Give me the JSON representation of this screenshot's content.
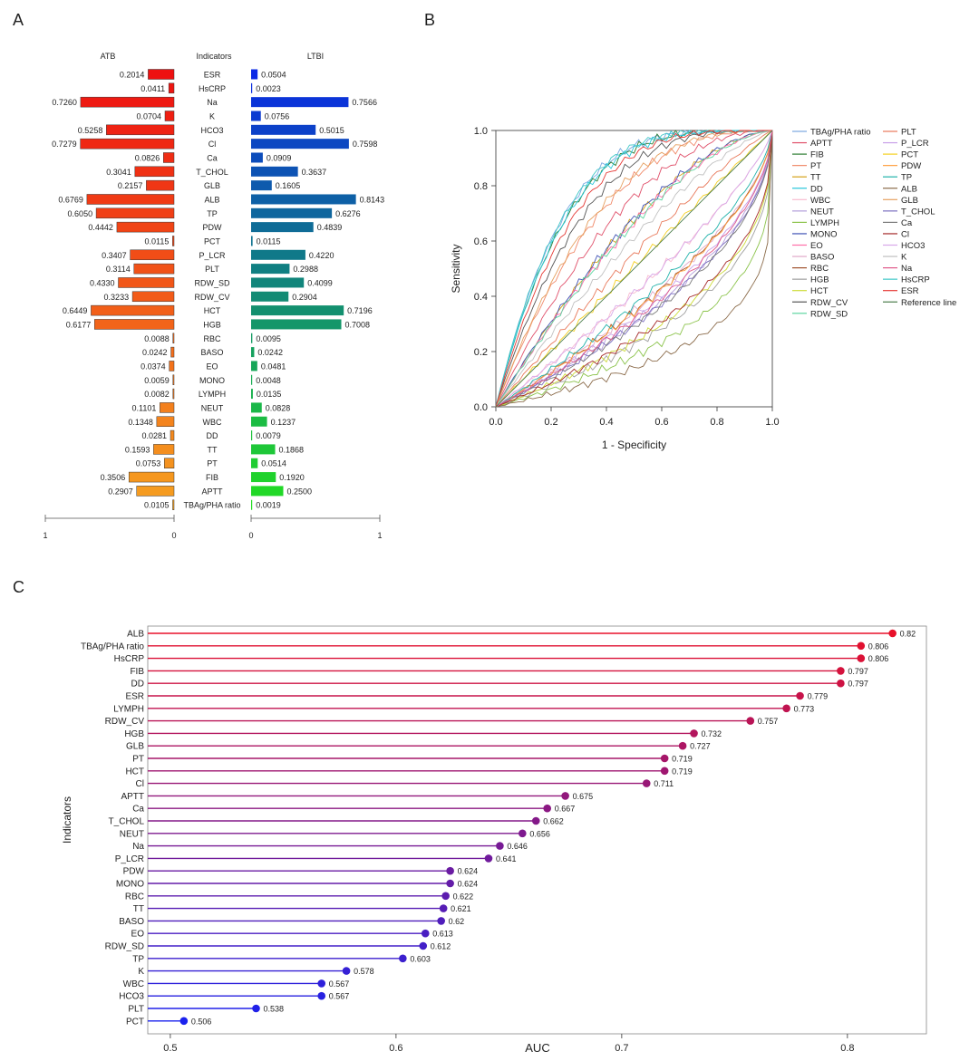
{
  "panels": {
    "a": "A",
    "b": "B",
    "c": "C"
  },
  "chart_data": [
    {
      "id": "A",
      "type": "bar",
      "orientation": "horizontal-diverging",
      "header_left": "ATB",
      "header_center": "Indicators",
      "header_right": "LTBI",
      "categories": [
        "ESR",
        "HsCRP",
        "Na",
        "K",
        "HCO3",
        "Cl",
        "Ca",
        "T_CHOL",
        "GLB",
        "ALB",
        "TP",
        "PDW",
        "PCT",
        "P_LCR",
        "PLT",
        "RDW_SD",
        "RDW_CV",
        "HCT",
        "HGB",
        "RBC",
        "BASO",
        "EO",
        "MONO",
        "LYMPH",
        "NEUT",
        "WBC",
        "DD",
        "TT",
        "PT",
        "FIB",
        "APTT",
        "TBAg/PHA ratio"
      ],
      "series": [
        {
          "name": "ATB",
          "values": [
            0.2014,
            0.0411,
            0.726,
            0.0704,
            0.5258,
            0.7279,
            0.0826,
            0.3041,
            0.2157,
            0.6769,
            0.605,
            0.4442,
            0.0115,
            0.3407,
            0.3114,
            0.433,
            0.3233,
            0.6449,
            0.6177,
            0.0088,
            0.0242,
            0.0374,
            0.0059,
            0.0082,
            0.1101,
            0.1348,
            0.0281,
            0.1593,
            0.0753,
            0.3506,
            0.2907,
            0.0105
          ]
        },
        {
          "name": "LTBI",
          "values": [
            0.0504,
            0.0023,
            0.7566,
            0.0756,
            0.5015,
            0.7598,
            0.0909,
            0.3637,
            0.1605,
            0.8143,
            0.6276,
            0.4839,
            0.0115,
            0.422,
            0.2988,
            0.4099,
            0.2904,
            0.7196,
            0.7008,
            0.0095,
            0.0242,
            0.0481,
            0.0048,
            0.0135,
            0.0828,
            0.1237,
            0.0079,
            0.1868,
            0.0514,
            0.192,
            0.25,
            0.0019
          ]
        }
      ],
      "value_labels_left": [
        "0.2014",
        "0.0411",
        "0.7260",
        "0.0704",
        "0.5258",
        "0.7279",
        "0.0826",
        "0.3041",
        "0.2157",
        "0.6769",
        "0.6050",
        "0.4442",
        "0.0115",
        "0.3407",
        "0.3114",
        "0.4330",
        "0.3233",
        "0.6449",
        "0.6177",
        "0.0088",
        "0.0242",
        "0.0374",
        "0.0059",
        "0.0082",
        "0.1101",
        "0.1348",
        "0.0281",
        "0.1593",
        "0.0753",
        "0.3506",
        "0.2907",
        "0.0105"
      ],
      "value_labels_right": [
        "0.0504",
        "0.0023",
        "0.7566",
        "0.0756",
        "0.5015",
        "0.7598",
        "0.0909",
        "0.3637",
        "0.1605",
        "0.8143",
        "0.6276",
        "0.4839",
        "0.0115",
        "0.4220",
        "0.2988",
        "0.4099",
        "0.2904",
        "0.7196",
        "0.7008",
        "0.0095",
        "0.0242",
        "0.0481",
        "0.0048",
        "0.0135",
        "0.0828",
        "0.1237",
        "0.0079",
        "0.1868",
        "0.0514",
        "0.1920",
        "0.2500",
        "0.0019"
      ],
      "left_ticks": [
        "1",
        "0"
      ],
      "right_ticks": [
        "0",
        "1"
      ],
      "xlim": [
        0,
        1
      ],
      "color_left_top": "#ee1111",
      "color_left_bottom": "#f5a020",
      "color_right_top": "#0a28e6",
      "color_right_mid": "#118877",
      "color_right_bottom": "#22dd22"
    },
    {
      "id": "B",
      "type": "line",
      "xlabel": "1 - Specificity",
      "ylabel": "Sensitivity",
      "xlim": [
        0,
        1
      ],
      "ylim": [
        0,
        1
      ],
      "x_ticks": [
        "0.0",
        "0.2",
        "0.4",
        "0.6",
        "0.8",
        "1.0"
      ],
      "y_ticks": [
        "0.0",
        "0.2",
        "0.4",
        "0.6",
        "0.8",
        "1.0"
      ],
      "tick_values": [
        0,
        0.2,
        0.4,
        0.6,
        0.8,
        1.0
      ],
      "legend_position": "right",
      "legend_col1": [
        "TBAg/PHA ratio",
        "APTT",
        "FIB",
        "PT",
        "TT",
        "DD",
        "WBC",
        "NEUT",
        "LYMPH",
        "MONO",
        "EO",
        "BASO",
        "RBC",
        "HGB",
        "HCT",
        "RDW_CV",
        "RDW_SD"
      ],
      "legend_col2": [
        "PLT",
        "P_LCR",
        "PCT",
        "PDW",
        "TP",
        "ALB",
        "GLB",
        "T_CHOL",
        "Ca",
        "Cl",
        "HCO3",
        "K",
        "Na",
        "HsCRP",
        "ESR",
        "Reference line"
      ],
      "series": [
        {
          "name": "TBAg/PHA ratio",
          "color": "#7aa7e0",
          "auc": 0.806,
          "dir": 1
        },
        {
          "name": "APTT",
          "color": "#e0506a",
          "auc": 0.675,
          "dir": 1
        },
        {
          "name": "FIB",
          "color": "#2e7d32",
          "auc": 0.797,
          "dir": 1
        },
        {
          "name": "PT",
          "color": "#f08a6a",
          "auc": 0.719,
          "dir": 1
        },
        {
          "name": "TT",
          "color": "#d4a017",
          "auc": 0.621,
          "dir": 1
        },
        {
          "name": "DD",
          "color": "#26c6da",
          "auc": 0.797,
          "dir": 1
        },
        {
          "name": "WBC",
          "color": "#f8bbd0",
          "auc": 0.567,
          "dir": -1
        },
        {
          "name": "NEUT",
          "color": "#b39ddb",
          "auc": 0.656,
          "dir": -1
        },
        {
          "name": "LYMPH",
          "color": "#8bc34a",
          "auc": 0.773,
          "dir": -1
        },
        {
          "name": "MONO",
          "color": "#3f51b5",
          "auc": 0.624,
          "dir": 1
        },
        {
          "name": "EO",
          "color": "#ff6fa8",
          "auc": 0.613,
          "dir": 1
        },
        {
          "name": "BASO",
          "color": "#e0a8c8",
          "auc": 0.62,
          "dir": -1
        },
        {
          "name": "RBC",
          "color": "#a0522d",
          "auc": 0.622,
          "dir": -1
        },
        {
          "name": "HGB",
          "color": "#9e9e9e",
          "auc": 0.732,
          "dir": -1
        },
        {
          "name": "HCT",
          "color": "#cddc39",
          "auc": 0.719,
          "dir": -1
        },
        {
          "name": "RDW_CV",
          "color": "#555555",
          "auc": 0.757,
          "dir": 1
        },
        {
          "name": "RDW_SD",
          "color": "#5dd6a0",
          "auc": 0.612,
          "dir": 1
        },
        {
          "name": "PLT",
          "color": "#e8785a",
          "auc": 0.538,
          "dir": 1
        },
        {
          "name": "P_LCR",
          "color": "#c8a0e8",
          "auc": 0.641,
          "dir": -1
        },
        {
          "name": "PCT",
          "color": "#f5d020",
          "auc": 0.506,
          "dir": 1
        },
        {
          "name": "PDW",
          "color": "#ffa040",
          "auc": 0.624,
          "dir": -1
        },
        {
          "name": "TP",
          "color": "#20b2aa",
          "auc": 0.603,
          "dir": -1
        },
        {
          "name": "ALB",
          "color": "#8b6b4a",
          "auc": 0.82,
          "dir": -1
        },
        {
          "name": "GLB",
          "color": "#e6a060",
          "auc": 0.727,
          "dir": 1
        },
        {
          "name": "T_CHOL",
          "color": "#7b6fc0",
          "auc": 0.662,
          "dir": -1
        },
        {
          "name": "Ca",
          "color": "#7a7a7a",
          "auc": 0.667,
          "dir": -1
        },
        {
          "name": "Cl",
          "color": "#a52a2a",
          "auc": 0.711,
          "dir": -1
        },
        {
          "name": "HCO3",
          "color": "#d8a8e8",
          "auc": 0.567,
          "dir": -1
        },
        {
          "name": "K",
          "color": "#c0c0c0",
          "auc": 0.578,
          "dir": 1
        },
        {
          "name": "Na",
          "color": "#e05a8a",
          "auc": 0.646,
          "dir": -1
        },
        {
          "name": "HsCRP",
          "color": "#40c8c8",
          "auc": 0.806,
          "dir": 1
        },
        {
          "name": "ESR",
          "color": "#e53935",
          "auc": 0.779,
          "dir": 1
        },
        {
          "name": "Reference line",
          "color": "#4a7d4a",
          "auc": 0.5,
          "dir": 0
        }
      ]
    },
    {
      "id": "C",
      "type": "scatter",
      "subtype": "lollipop",
      "xlabel": "AUC",
      "ylabel": "Indicators",
      "xlim": [
        0.49,
        0.835
      ],
      "x_ticks": [
        "0.5",
        "0.6",
        "0.7",
        "0.8"
      ],
      "x_tick_values": [
        0.5,
        0.6,
        0.7,
        0.8
      ],
      "categories": [
        "ALB",
        "TBAg/PHA ratio",
        "HsCRP",
        "FIB",
        "DD",
        "ESR",
        "LYMPH",
        "RDW_CV",
        "HGB",
        "GLB",
        "PT",
        "HCT",
        "Cl",
        "APTT",
        "Ca",
        "T_CHOL",
        "NEUT",
        "Na",
        "P_LCR",
        "PDW",
        "MONO",
        "RBC",
        "TT",
        "BASO",
        "EO",
        "RDW_SD",
        "TP",
        "K",
        "WBC",
        "HCO3",
        "PLT",
        "PCT"
      ],
      "values": [
        0.82,
        0.806,
        0.806,
        0.797,
        0.797,
        0.779,
        0.773,
        0.757,
        0.732,
        0.727,
        0.719,
        0.719,
        0.711,
        0.675,
        0.667,
        0.662,
        0.656,
        0.646,
        0.641,
        0.624,
        0.624,
        0.622,
        0.621,
        0.62,
        0.613,
        0.612,
        0.603,
        0.578,
        0.567,
        0.567,
        0.538,
        0.506
      ],
      "value_labels": [
        "0.82",
        "0.806",
        "0.806",
        "0.797",
        "0.797",
        "0.779",
        "0.773",
        "0.757",
        "0.732",
        "0.727",
        "0.719",
        "0.719",
        "0.711",
        "0.675",
        "0.667",
        "0.662",
        "0.656",
        "0.646",
        "0.641",
        "0.624",
        "0.624",
        "0.622",
        "0.621",
        "0.62",
        "0.613",
        "0.612",
        "0.603",
        "0.578",
        "0.567",
        "0.567",
        "0.538",
        "0.506"
      ],
      "color_top": "#e8102a",
      "color_bottom": "#1a22ee"
    }
  ]
}
